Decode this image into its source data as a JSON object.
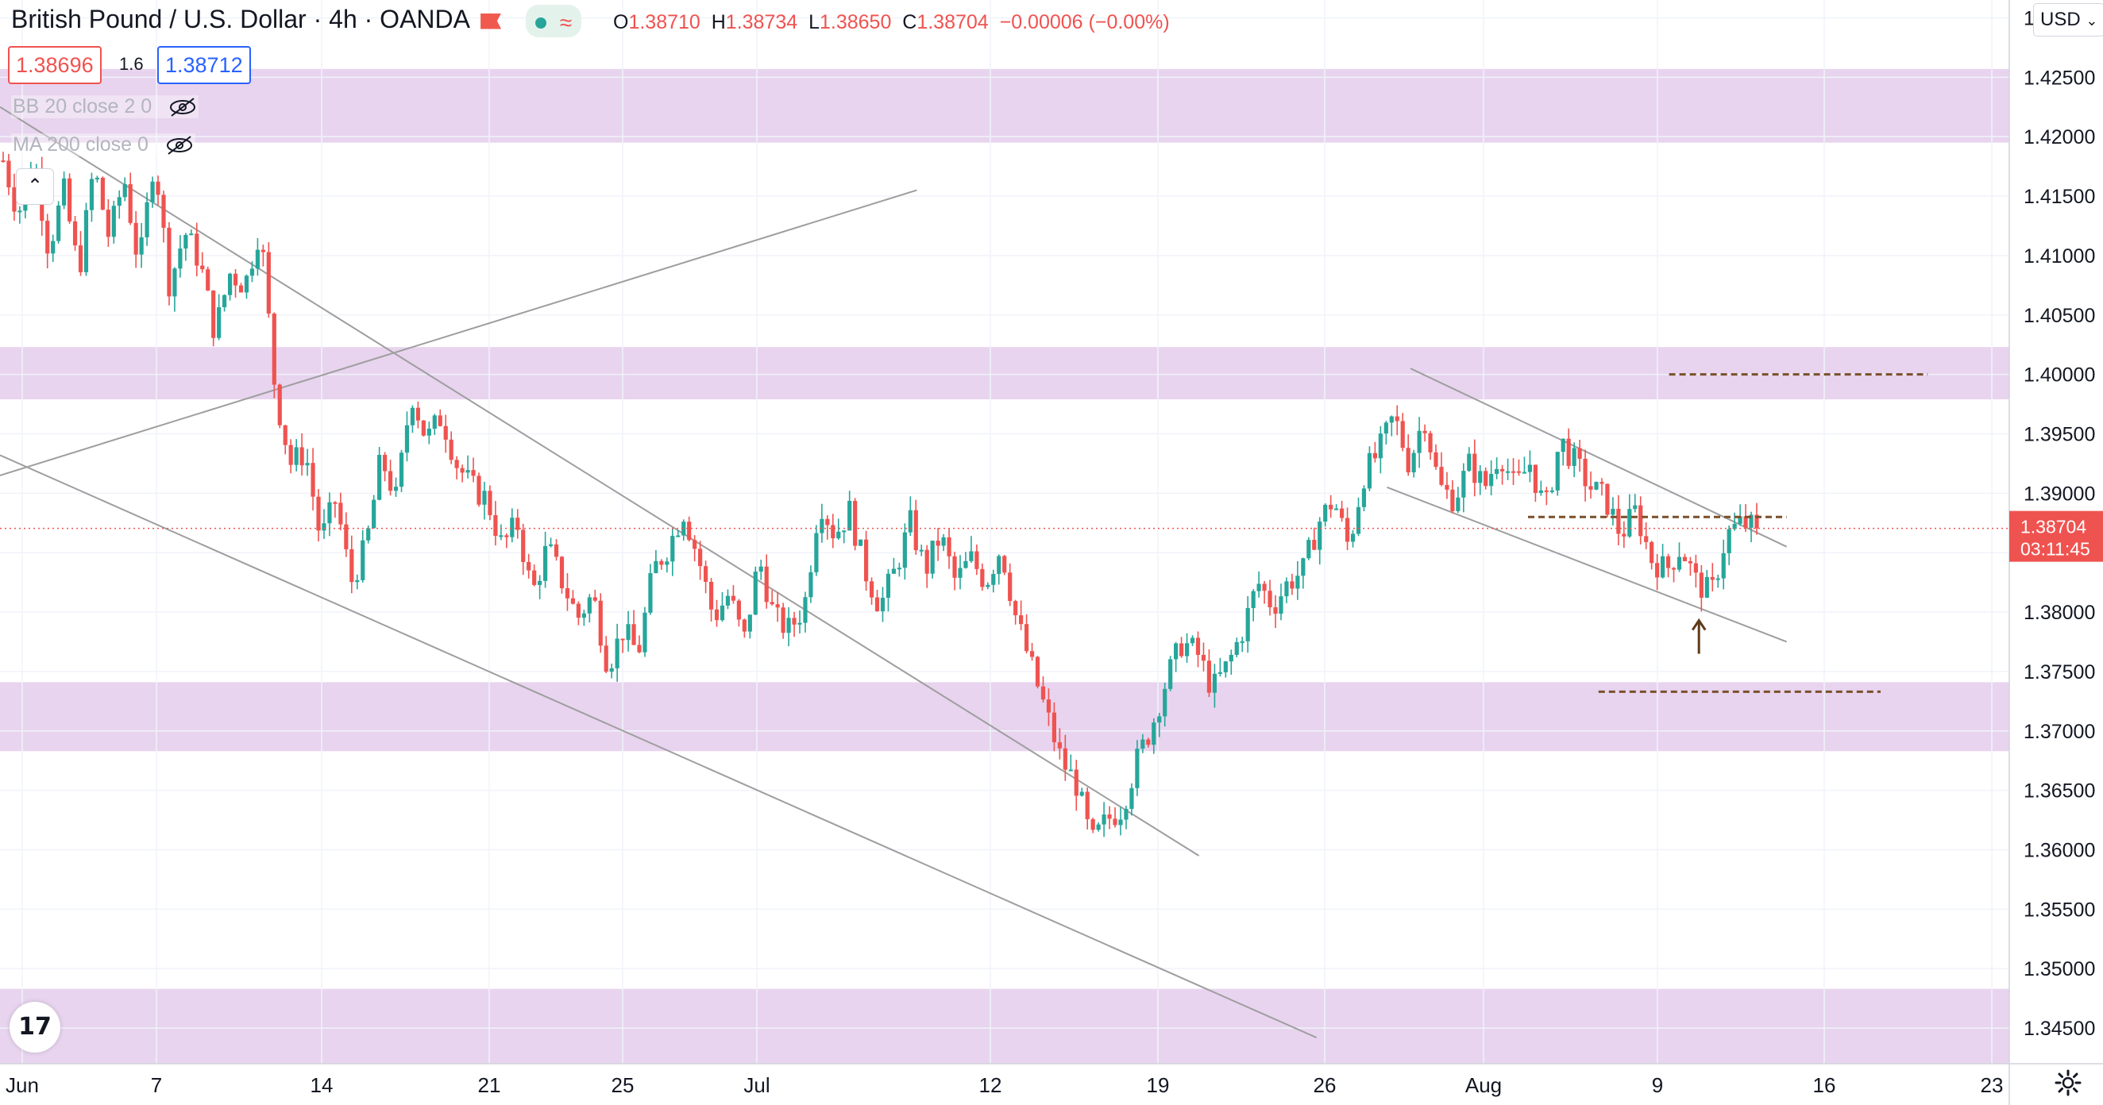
{
  "header": {
    "symbol_title": "British Pound / U.S. Dollar · 4h · OANDA",
    "ohlc": {
      "open_label": "O",
      "open": "1.38710",
      "high_label": "H",
      "high": "1.38734",
      "low_label": "L",
      "low": "1.38650",
      "close_label": "C",
      "close": "1.38704",
      "change": "−0.00006 (−0.00%)"
    },
    "bid_price": "1.38696",
    "spread": "1.6",
    "ask_price": "1.38712"
  },
  "indicators": [
    {
      "label": "BB 20 close 2 0"
    },
    {
      "label": "MA 200 close 0"
    }
  ],
  "currency_button": "USD",
  "last_price_tag": {
    "price": "1.38704",
    "countdown": "03:11:45"
  },
  "logo_text": "17",
  "colors": {
    "up": "#26a69a",
    "down": "#ef5350",
    "zone": "#e1c8ea",
    "trendline": "#9e9e9e",
    "level_dash": "#7a4f2a",
    "price_line": "#ef5350"
  },
  "chart_data": {
    "type": "candlestick",
    "y_range": [
      1.342,
      1.4315
    ],
    "y_ticks": [
      "1.43000",
      "1.42500",
      "1.42000",
      "1.41500",
      "1.41000",
      "1.40500",
      "1.40000",
      "1.39500",
      "1.39000",
      "1.38500",
      "1.38000",
      "1.37500",
      "1.37000",
      "1.36500",
      "1.36000",
      "1.35500",
      "1.35000",
      "1.34500"
    ],
    "x_ticks": [
      "Jun",
      "7",
      "14",
      "21",
      "25",
      "Jul",
      "12",
      "19",
      "26",
      "Aug",
      "9",
      "16",
      "23"
    ],
    "path": [
      1.418,
      1.4135,
      1.4185,
      1.4105,
      1.4155,
      1.4085,
      1.4175,
      1.4115,
      1.4165,
      1.409,
      1.4185,
      1.4075,
      1.412,
      1.4095,
      1.4035,
      1.4085,
      1.4075,
      1.4125,
      1.3985,
      1.3925,
      1.3935,
      1.386,
      1.3895,
      1.3825,
      1.3855,
      1.393,
      1.3895,
      1.3985,
      1.3945,
      1.3965,
      1.3925,
      1.3905,
      1.3895,
      1.3855,
      1.3875,
      1.3815,
      1.3855,
      1.3825,
      1.3795,
      1.3815,
      1.3755,
      1.3785,
      1.3765,
      1.3835,
      1.3855,
      1.3885,
      1.3845,
      1.3795,
      1.3815,
      1.3775,
      1.3845,
      1.3795,
      1.3785,
      1.3805,
      1.3895,
      1.3865,
      1.3885,
      1.3835,
      1.3805,
      1.3835,
      1.3875,
      1.3835,
      1.3865,
      1.3825,
      1.3845,
      1.3825,
      1.3855,
      1.3795,
      1.3755,
      1.3715,
      1.3675,
      1.3655,
      1.3605,
      1.3625,
      1.3635,
      1.3675,
      1.3705,
      1.3745,
      1.3775,
      1.3765,
      1.3735,
      1.3755,
      1.3785,
      1.3825,
      1.3805,
      1.3825,
      1.3835,
      1.3875,
      1.3895,
      1.3855,
      1.3915,
      1.3935,
      1.3965,
      1.3925,
      1.3965,
      1.3905,
      1.3895,
      1.3925,
      1.3905,
      1.3935,
      1.3905,
      1.3925,
      1.3885,
      1.3945,
      1.3925,
      1.3905,
      1.3895,
      1.3865,
      1.3885,
      1.3845,
      1.3835,
      1.3855,
      1.3825,
      1.3815,
      1.3865,
      1.3875,
      1.38704
    ],
    "pivot_points": [
      "Jun 1",
      "Jun 4",
      "Jun 7",
      "Jun 14",
      "Jun 17",
      "Jun 18",
      "Jun 21",
      "Jun 23",
      "Jun 25",
      "Jul 2",
      "Jul 6",
      "Jul 8",
      "Jul 12",
      "Jul 14",
      "Jul 19",
      "Jul 21",
      "Jul 23",
      "Jul 26",
      "Jul 29",
      "Jul 30",
      "Aug 2",
      "Aug 4",
      "Aug 6",
      "Aug 9",
      "Aug 10",
      "Aug 11",
      "Aug 12"
    ],
    "trendlines": [
      {
        "from": [
          "May 31",
          1.4225
        ],
        "to": [
          "Jul 21",
          1.3595
        ]
      },
      {
        "from": [
          "May 31",
          1.3932
        ],
        "to": [
          "Jul 26",
          1.3442
        ]
      },
      {
        "from": [
          "May 31",
          1.3915
        ],
        "to": [
          "Jul 9",
          1.4155
        ]
      },
      {
        "from": [
          "Jul 30",
          1.4005
        ],
        "to": [
          "Aug 15",
          1.3855
        ]
      },
      {
        "from": [
          "Jul 29",
          1.3905
        ],
        "to": [
          "Aug 15",
          1.3775
        ]
      }
    ],
    "zones": [
      [
        1.4195,
        1.4257
      ],
      [
        1.3979,
        1.4023
      ],
      [
        1.3683,
        1.3741
      ],
      [
        1.342,
        1.3483
      ]
    ],
    "dashed_levels": [
      {
        "level": 1.4,
        "from": "Aug 10",
        "to": "Aug 21"
      },
      {
        "level": 1.388,
        "from": "Aug 4",
        "to": "Aug 15"
      },
      {
        "level": 1.3733,
        "from": "Aug 7",
        "to": "Aug 19"
      }
    ],
    "arrow_at": [
      "Aug 11",
      1.3805
    ],
    "current_price": 1.38704
  }
}
